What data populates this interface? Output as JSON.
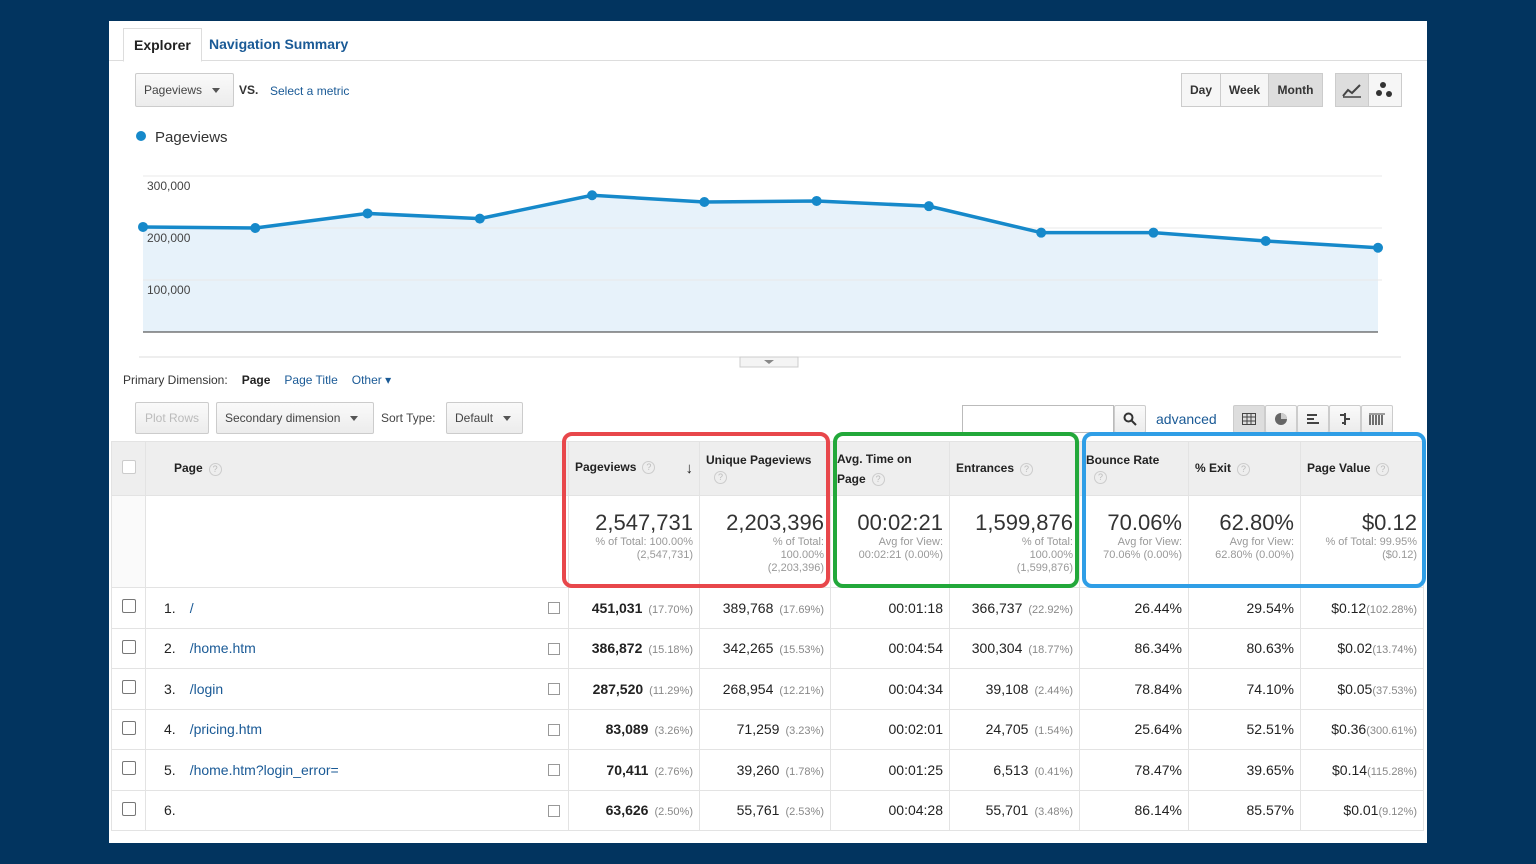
{
  "tabs": {
    "active": "Explorer",
    "other": "Navigation Summary"
  },
  "controls": {
    "metric": "Pageviews",
    "vs": "VS.",
    "select_metric": "Select a metric",
    "day": "Day",
    "week": "Week",
    "month": "Month"
  },
  "chart_data": {
    "type": "line",
    "series": [
      {
        "name": "Pageviews",
        "values": [
          202000,
          200000,
          228000,
          218000,
          263000,
          250000,
          252000,
          242000,
          191000,
          191000,
          175000,
          162000
        ]
      }
    ],
    "ylim": [
      0,
      300000
    ],
    "yticks": [
      "300,000",
      "200,000",
      "100,000"
    ],
    "color": "#1689ca"
  },
  "dimension": {
    "label": "Primary Dimension:",
    "page": "Page",
    "title": "Page Title",
    "other": "Other"
  },
  "toolbar": {
    "plot_rows": "Plot Rows",
    "secondary": "Secondary dimension",
    "sort_type": "Sort Type:",
    "sort_default": "Default",
    "advanced": "advanced"
  },
  "headers": {
    "page": "Page",
    "pageviews": "Pageviews",
    "unique": "Unique Pageviews",
    "avg_time": "Avg. Time on Page",
    "entrances": "Entrances",
    "bounce": "Bounce Rate",
    "exit": "% Exit",
    "value": "Page Value"
  },
  "totals": {
    "pageviews": {
      "big": "2,547,731",
      "l1": "% of Total: 100.00%",
      "l2": "(2,547,731)"
    },
    "unique": {
      "big": "2,203,396",
      "l1": "% of Total:",
      "l2": "100.00%",
      "l3": "(2,203,396)"
    },
    "avg_time": {
      "big": "00:02:21",
      "l1": "Avg for View:",
      "l2": "00:02:21 (0.00%)"
    },
    "entrances": {
      "big": "1,599,876",
      "l1": "% of Total:",
      "l2": "100.00%",
      "l3": "(1,599,876)"
    },
    "bounce": {
      "big": "70.06%",
      "l1": "Avg for View:",
      "l2": "70.06% (0.00%)"
    },
    "exit": {
      "big": "62.80%",
      "l1": "Avg for View:",
      "l2": "62.80% (0.00%)"
    },
    "value": {
      "big": "$0.12",
      "l1": "% of Total: 99.95%",
      "l2": "($0.12)"
    }
  },
  "rows": [
    {
      "n": "1.",
      "page": "/",
      "pv": "451,031",
      "pvp": "(17.70%)",
      "up": "389,768",
      "upp": "(17.69%)",
      "t": "00:01:18",
      "e": "366,737",
      "ep": "(22.92%)",
      "b": "26.44%",
      "x": "29.54%",
      "v": "$0.12",
      "vp": "(102.28%)"
    },
    {
      "n": "2.",
      "page": "/home.htm",
      "pv": "386,872",
      "pvp": "(15.18%)",
      "up": "342,265",
      "upp": "(15.53%)",
      "t": "00:04:54",
      "e": "300,304",
      "ep": "(18.77%)",
      "b": "86.34%",
      "x": "80.63%",
      "v": "$0.02",
      "vp": "(13.74%)"
    },
    {
      "n": "3.",
      "page": "/login",
      "pv": "287,520",
      "pvp": "(11.29%)",
      "up": "268,954",
      "upp": "(12.21%)",
      "t": "00:04:34",
      "e": "39,108",
      "ep": "(2.44%)",
      "b": "78.84%",
      "x": "74.10%",
      "v": "$0.05",
      "vp": "(37.53%)"
    },
    {
      "n": "4.",
      "page": "/pricing.htm",
      "pv": "83,089",
      "pvp": "(3.26%)",
      "up": "71,259",
      "upp": "(3.23%)",
      "t": "00:02:01",
      "e": "24,705",
      "ep": "(1.54%)",
      "b": "25.64%",
      "x": "52.51%",
      "v": "$0.36",
      "vp": "(300.61%)"
    },
    {
      "n": "5.",
      "page": "/home.htm?login_error=",
      "pv": "70,411",
      "pvp": "(2.76%)",
      "up": "39,260",
      "upp": "(1.78%)",
      "t": "00:01:25",
      "e": "6,513",
      "ep": "(0.41%)",
      "b": "78.47%",
      "x": "39.65%",
      "v": "$0.14",
      "vp": "(115.28%)"
    },
    {
      "n": "6.",
      "page": "",
      "pv": "63,626",
      "pvp": "(2.50%)",
      "up": "55,761",
      "upp": "(2.53%)",
      "t": "00:04:28",
      "e": "55,701",
      "ep": "(3.48%)",
      "b": "86.14%",
      "x": "85.57%",
      "v": "$0.01",
      "vp": "(9.12%)"
    }
  ],
  "colors": {
    "red": "#e8474b",
    "green": "#22a83a",
    "blue": "#2f9ee6"
  }
}
